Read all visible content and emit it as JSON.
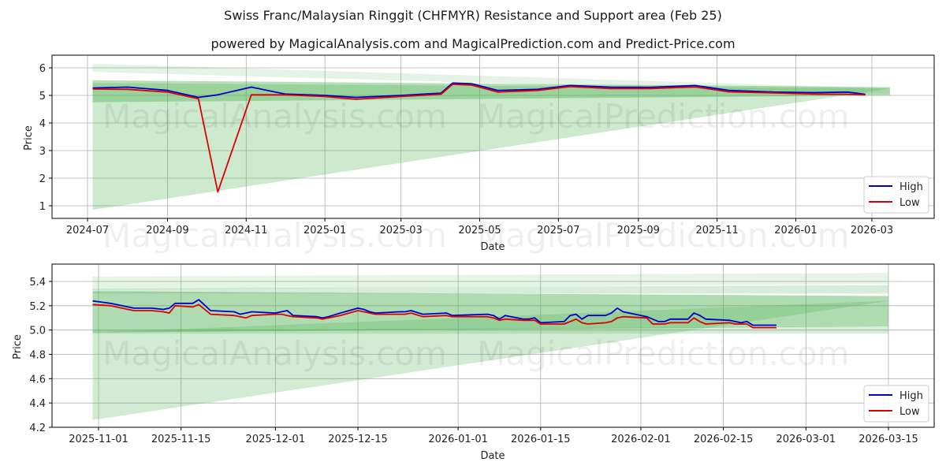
{
  "header": {
    "title": "Swiss Franc/Malaysian Ringgit (CHFMYR) Resistance and Support area (Feb 25)",
    "subtitle": "powered by MagicalAnalysis.com and MagicalPrediction.com and Predict-Price.com"
  },
  "watermarks": [
    "MagicalAnalysis.com",
    "MagicalPrediction.com"
  ],
  "colors": {
    "high": "#0000cc",
    "low": "#dd0000",
    "band": "#4caf50",
    "grid": "#b0b0b0"
  },
  "legend": {
    "high": "High",
    "low": "Low"
  },
  "chart_data": [
    {
      "type": "line",
      "title": "Swiss Franc/Malaysian Ringgit (CHFMYR) Resistance and Support area (Feb 25) - full history",
      "xlabel": "Date",
      "ylabel": "Price",
      "ylim": [
        0.55,
        6.45
      ],
      "yticks": [
        1,
        2,
        3,
        4,
        5,
        6
      ],
      "xticks": [
        "2024-07",
        "2024-09",
        "2024-11",
        "2025-01",
        "2025-03",
        "2025-05",
        "2025-07",
        "2025-09",
        "2025-11",
        "2026-01",
        "2026-03"
      ],
      "grid": true,
      "legend_position": "lower right",
      "x": [
        "2024-07-05",
        "2024-08-01",
        "2024-09-01",
        "2024-09-25",
        "2024-10-10",
        "2024-11-05",
        "2024-12-01",
        "2025-01-01",
        "2025-01-25",
        "2025-03-01",
        "2025-04-01",
        "2025-04-10",
        "2025-04-25",
        "2025-05-15",
        "2025-06-15",
        "2025-07-10",
        "2025-08-10",
        "2025-09-10",
        "2025-10-15",
        "2025-11-10",
        "2025-12-15",
        "2026-01-15",
        "2026-02-10",
        "2026-02-24"
      ],
      "series": [
        {
          "name": "High",
          "values": [
            5.27,
            5.3,
            5.18,
            4.93,
            5.02,
            5.3,
            5.05,
            5.0,
            4.93,
            5.0,
            5.08,
            5.45,
            5.42,
            5.18,
            5.22,
            5.36,
            5.3,
            5.29,
            5.36,
            5.18,
            5.12,
            5.1,
            5.12,
            5.04
          ]
        },
        {
          "name": "Low",
          "values": [
            5.23,
            5.22,
            5.12,
            4.88,
            1.5,
            5.02,
            5.02,
            4.96,
            4.86,
            4.96,
            5.04,
            5.4,
            5.37,
            5.12,
            5.18,
            5.32,
            5.25,
            5.25,
            5.31,
            5.13,
            5.09,
            5.05,
            5.04,
            5.02
          ]
        }
      ],
      "bands": [
        {
          "name": "outer-resistance",
          "x_start": "2024-07-05",
          "x_end": "2026-03-15",
          "top": [
            6.15,
            5.25
          ],
          "bottom": [
            5.85,
            5.05
          ]
        },
        {
          "name": "resistance",
          "x_start": "2024-07-05",
          "x_end": "2026-03-15",
          "top": [
            5.55,
            5.3
          ],
          "bottom": [
            4.75,
            5.0
          ]
        },
        {
          "name": "support-wedge",
          "x_start": "2024-07-05",
          "x_end": "2026-03-15",
          "top": [
            5.45,
            5.25
          ],
          "bottom": [
            0.85,
            5.25
          ]
        }
      ]
    },
    {
      "type": "line",
      "title": "Recent zoom",
      "xlabel": "Date",
      "ylabel": "Price",
      "ylim": [
        4.2,
        5.54
      ],
      "yticks": [
        4.2,
        4.4,
        4.6,
        4.8,
        5.0,
        5.2,
        5.4
      ],
      "xticks": [
        "2025-11-01",
        "2025-11-15",
        "2025-12-01",
        "2025-12-15",
        "2026-01-01",
        "2026-01-15",
        "2026-02-01",
        "2026-02-15",
        "2026-03-01",
        "2026-03-15"
      ],
      "grid": true,
      "legend_position": "lower right",
      "x": [
        "2025-10-31",
        "2025-11-03",
        "2025-11-05",
        "2025-11-06",
        "2025-11-07",
        "2025-11-10",
        "2025-11-12",
        "2025-11-13",
        "2025-11-14",
        "2025-11-17",
        "2025-11-18",
        "2025-11-20",
        "2025-11-24",
        "2025-11-25",
        "2025-11-26",
        "2025-11-27",
        "2025-12-01",
        "2025-12-02",
        "2025-12-03",
        "2025-12-04",
        "2025-12-08",
        "2025-12-09",
        "2025-12-10",
        "2025-12-12",
        "2025-12-15",
        "2025-12-16",
        "2025-12-17",
        "2025-12-18",
        "2025-12-22",
        "2025-12-23",
        "2025-12-24",
        "2025-12-26",
        "2025-12-30",
        "2025-12-31",
        "2026-01-06",
        "2026-01-07",
        "2026-01-08",
        "2026-01-09",
        "2026-01-12",
        "2026-01-13",
        "2026-01-14",
        "2026-01-15",
        "2026-01-19",
        "2026-01-20",
        "2026-01-21",
        "2026-01-22",
        "2026-01-23",
        "2026-01-26",
        "2026-01-27",
        "2026-01-28",
        "2026-01-29",
        "2026-02-02",
        "2026-02-03",
        "2026-02-04",
        "2026-02-05",
        "2026-02-06",
        "2026-02-09",
        "2026-02-10",
        "2026-02-11",
        "2026-02-12",
        "2026-02-16",
        "2026-02-17",
        "2026-02-18",
        "2026-02-19",
        "2026-02-20",
        "2026-02-23",
        "2026-02-24"
      ],
      "series": [
        {
          "name": "High",
          "values": [
            5.24,
            5.22,
            5.2,
            5.19,
            5.18,
            5.18,
            5.17,
            5.18,
            5.22,
            5.22,
            5.25,
            5.16,
            5.15,
            5.13,
            5.14,
            5.15,
            5.14,
            5.15,
            5.16,
            5.12,
            5.11,
            5.1,
            5.11,
            5.14,
            5.18,
            5.17,
            5.15,
            5.14,
            5.15,
            5.15,
            5.16,
            5.13,
            5.14,
            5.12,
            5.13,
            5.12,
            5.09,
            5.12,
            5.09,
            5.09,
            5.1,
            5.06,
            5.07,
            5.12,
            5.13,
            5.09,
            5.12,
            5.12,
            5.14,
            5.18,
            5.15,
            5.11,
            5.09,
            5.07,
            5.07,
            5.09,
            5.09,
            5.14,
            5.12,
            5.09,
            5.08,
            5.07,
            5.06,
            5.07,
            5.04,
            5.04,
            5.04
          ]
        },
        {
          "name": "Low",
          "values": [
            5.21,
            5.2,
            5.18,
            5.17,
            5.16,
            5.16,
            5.15,
            5.14,
            5.2,
            5.19,
            5.21,
            5.13,
            5.12,
            5.11,
            5.1,
            5.12,
            5.13,
            5.13,
            5.12,
            5.11,
            5.1,
            5.09,
            5.1,
            5.12,
            5.16,
            5.15,
            5.14,
            5.13,
            5.13,
            5.13,
            5.14,
            5.11,
            5.12,
            5.11,
            5.11,
            5.1,
            5.08,
            5.09,
            5.08,
            5.08,
            5.08,
            5.05,
            5.05,
            5.07,
            5.09,
            5.06,
            5.05,
            5.06,
            5.07,
            5.1,
            5.11,
            5.1,
            5.05,
            5.05,
            5.05,
            5.06,
            5.06,
            5.1,
            5.07,
            5.05,
            5.06,
            5.05,
            5.05,
            5.05,
            5.02,
            5.02,
            5.02
          ]
        }
      ],
      "bands": [
        {
          "name": "outer-light",
          "x_start": "2025-10-31",
          "x_end": "2026-03-15",
          "top": [
            5.44,
            5.47
          ],
          "bottom": [
            5.33,
            5.38
          ]
        },
        {
          "name": "mid-upper",
          "x_start": "2025-10-31",
          "x_end": "2026-03-15",
          "top": [
            5.34,
            5.37
          ],
          "bottom": [
            5.3,
            5.3
          ]
        },
        {
          "name": "dark-upper",
          "x_start": "2025-10-31",
          "x_end": "2026-03-15",
          "top": [
            5.32,
            5.28
          ],
          "bottom": [
            5.15,
            5.1
          ]
        },
        {
          "name": "dark-lower",
          "x_start": "2025-10-31",
          "x_end": "2026-03-15",
          "top": [
            5.15,
            5.1
          ],
          "bottom": [
            4.98,
            5.03
          ]
        },
        {
          "name": "lower-light",
          "x_start": "2025-10-31",
          "x_end": "2026-03-15",
          "top": [
            5.0,
            5.03
          ],
          "bottom": [
            4.97,
            4.97
          ]
        },
        {
          "name": "support-wedge",
          "x_start": "2025-10-31",
          "x_end": "2026-03-15",
          "top": [
            4.98,
            5.24
          ],
          "bottom": [
            4.26,
            5.24
          ]
        }
      ]
    }
  ]
}
